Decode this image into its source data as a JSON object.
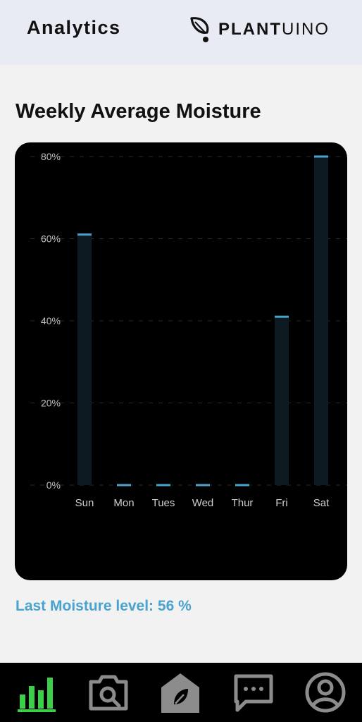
{
  "header": {
    "title": "Analytics",
    "brand_bold": "PLANT",
    "brand_light": "UINO"
  },
  "section": {
    "title": "Weekly Average Moisture"
  },
  "chart_data": {
    "type": "bar",
    "categories": [
      "Sun",
      "Mon",
      "Tues",
      "Wed",
      "Thur",
      "Fri",
      "Sat"
    ],
    "values": [
      61,
      0,
      0,
      0,
      0,
      41,
      80
    ],
    "yticks": [
      "0%",
      "20%",
      "40%",
      "60%",
      "80%"
    ],
    "ylim": [
      0,
      80
    ],
    "grid": true,
    "colors": {
      "bar_fill": "#0d1a22",
      "bar_top": "#4aa3cf",
      "grid": "#2a2a2a"
    }
  },
  "status": {
    "last_moisture": "Last Moisture level: 56 %"
  },
  "nav": {
    "items": [
      {
        "icon": "bar-chart-icon",
        "active": true
      },
      {
        "icon": "camera-search-icon",
        "active": false
      },
      {
        "icon": "home-plant-icon",
        "active": false
      },
      {
        "icon": "chat-icon",
        "active": false
      },
      {
        "icon": "profile-icon",
        "active": false
      }
    ],
    "colors": {
      "active": "#3ecf4a",
      "inactive": "#8c8c8c"
    }
  }
}
